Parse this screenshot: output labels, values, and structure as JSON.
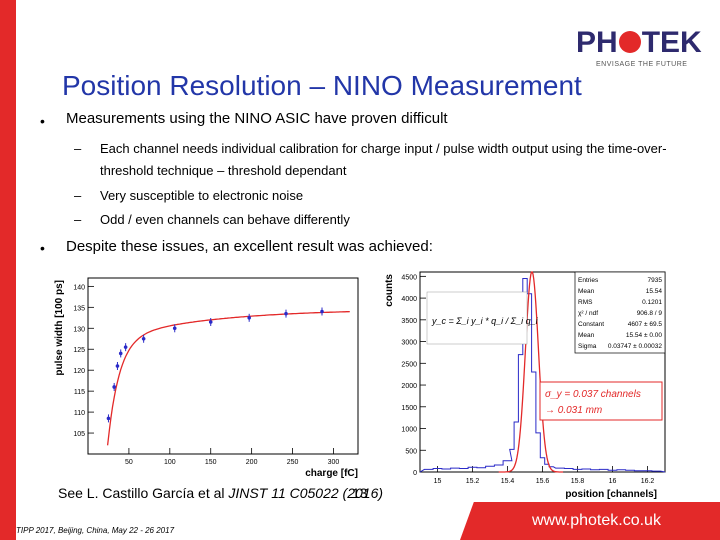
{
  "logo": {
    "text_left": "PH",
    "text_right": "TEK",
    "tagline": "ENVISAGE THE FUTURE"
  },
  "slide": {
    "title": "Position Resolution – NINO Measurement",
    "bullets": [
      "Measurements using the NINO ASIC have proven difficult",
      "Despite these issues, an excellent result was achieved:"
    ],
    "sub_bullets": [
      "Each channel needs individual calibration for charge input / pulse width output using the time-over-",
      "threshold technique – threshold dependant",
      "Very susceptible to electronic noise",
      "Odd / even channels can behave differently"
    ],
    "reference_prefix": "See L. Castillo García et al ",
    "reference_journal": "JINST 11 C05022 (2016)",
    "page_number": "13",
    "footer_left": "TIPP 2017, Beijing, China, May 22 - 26 2017",
    "footer_url": "www.photek.co.uk",
    "brand_red": "#e32929",
    "title_blue": "#2236a8"
  },
  "chart_data": [
    {
      "type": "scatter",
      "xlabel": "charge [fC]",
      "ylabel": "pulse width [100 ps]",
      "xlim": [
        0,
        330
      ],
      "ylim": [
        100,
        142
      ],
      "xticks": [
        "50",
        "100",
        "150",
        "200",
        "250",
        "300"
      ],
      "yticks": [
        "105",
        "110",
        "115",
        "120",
        "125",
        "130",
        "135",
        "140"
      ],
      "x": [
        25,
        32,
        36,
        40,
        46,
        68,
        106,
        150,
        197,
        242,
        286
      ],
      "y": [
        108.5,
        116,
        121,
        124,
        125.5,
        127.5,
        130,
        131.5,
        132.5,
        133.5,
        134
      ],
      "fit": "red curve"
    },
    {
      "type": "bar",
      "xlabel": "position [channels]",
      "ylabel": "counts",
      "xlim": [
        14.9,
        16.3
      ],
      "ylim": [
        0,
        4600
      ],
      "xticks": [
        "15",
        "15.2",
        "15.4",
        "15.6",
        "15.8",
        "16",
        "16.2"
      ],
      "yticks": [
        "0",
        "500",
        "1000",
        "1500",
        "2000",
        "2500",
        "3000",
        "3500",
        "4000",
        "4500"
      ],
      "bin_centers": [
        14.95,
        15.0,
        15.05,
        15.1,
        15.15,
        15.2,
        15.25,
        15.3,
        15.35,
        15.4,
        15.425,
        15.45,
        15.475,
        15.5,
        15.525,
        15.55,
        15.575,
        15.6,
        15.625,
        15.65,
        15.7,
        15.75,
        15.8,
        15.85,
        15.9,
        15.95,
        16.0,
        16.05,
        16.1,
        16.15,
        16.2,
        16.25
      ],
      "counts": [
        60,
        80,
        70,
        90,
        80,
        110,
        100,
        130,
        160,
        260,
        520,
        1150,
        2700,
        4450,
        4100,
        2300,
        900,
        330,
        180,
        120,
        90,
        80,
        60,
        70,
        50,
        60,
        40,
        50,
        40,
        30,
        30,
        20
      ],
      "stats": {
        "labels": [
          "Entries",
          "Mean",
          "RMS",
          "χ² / ndf",
          "Constant",
          "Mean",
          "Sigma"
        ],
        "values": [
          "7935",
          "15.54",
          "0.1201",
          "906.8 / 9",
          "4607 ± 69.5",
          "15.54 ± 0.00",
          "0.03747 ± 0.00032"
        ]
      },
      "formula": "y_c = Σ_i y_i * q_i / Σ_i q_i",
      "annotation_line1": "σ_y = 0.037 channels",
      "annotation_line2": "→ 0.031 mm"
    }
  ]
}
